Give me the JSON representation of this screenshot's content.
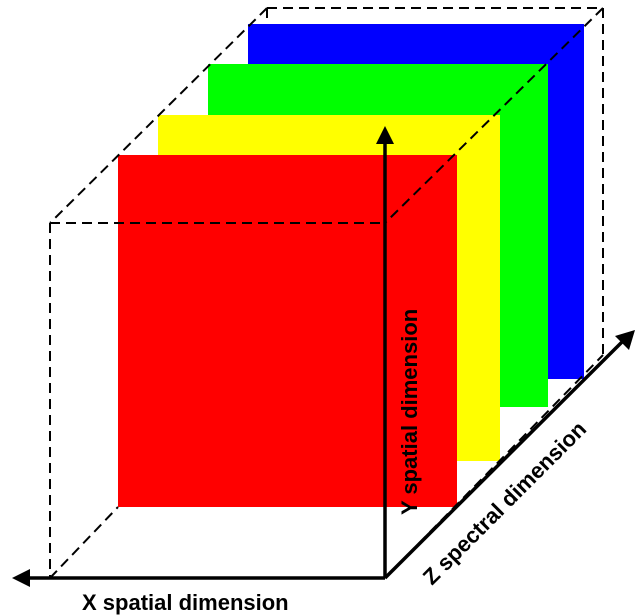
{
  "diagram": {
    "layers": [
      {
        "color": "#0000ff"
      },
      {
        "color": "#00ff00"
      },
      {
        "color": "#ffff00"
      },
      {
        "color": "#ff0000"
      }
    ],
    "axes": {
      "x_label": "X spatial dimension",
      "y_label": "Y spatial dimension",
      "z_label": "Z spectral dimension"
    }
  }
}
